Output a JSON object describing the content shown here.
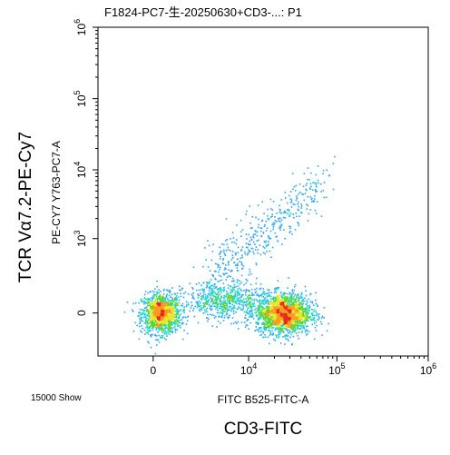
{
  "chart_data": {
    "type": "scatter",
    "title": "F1824-PC7-生-20250630+CD3-...: P1",
    "xlabel": "FITC B525-FITC-A",
    "ylabel": "PE-CY7 Y763-PC7-A",
    "outer_xlabel": "CD3-FITC",
    "outer_ylabel": "TCR Vα7.2-PE-Cy7",
    "footer": "15000 Show",
    "x_ticks": [
      {
        "value": 0,
        "base": "0",
        "exp": ""
      },
      {
        "value": 10000,
        "base": "10",
        "exp": "4"
      },
      {
        "value": 100000,
        "base": "10",
        "exp": "5"
      },
      {
        "value": 1000000,
        "base": "10",
        "exp": "6"
      }
    ],
    "y_ticks": [
      {
        "value": 0,
        "base": "0",
        "exp": ""
      },
      {
        "value": 1000,
        "base": "10",
        "exp": "3"
      },
      {
        "value": 10000,
        "base": "10",
        "exp": "4"
      },
      {
        "value": 100000,
        "base": "10",
        "exp": "5"
      },
      {
        "value": 1000000,
        "base": "10",
        "exp": "6"
      }
    ],
    "scale": "biexponential",
    "xlim": [
      -3000,
      1000000
    ],
    "ylim": [
      -300,
      1000000
    ],
    "event_count": 15000,
    "populations": [
      {
        "name": "",
        "x_center": 200,
        "x_spread": 600,
        "y_center": 0,
        "y_spread": 150,
        "fraction": 0.3
      },
      {
        "name": "",
        "x_center": 25000,
        "x_spread": 20000,
        "y_center": 0,
        "y_spread": 150,
        "fraction": 0.45
      },
      {
        "name": "",
        "x_center": 5000,
        "x_spread": 8000,
        "y_center": 50,
        "y_spread": 200,
        "fraction": 0.15
      },
      {
        "name": "",
        "x_center": 28000,
        "x_spread": 18000,
        "y_center": 2500,
        "y_spread": 2500,
        "fraction": 0.1
      }
    ],
    "colormap": [
      "#1f1fd6",
      "#2aa5ff",
      "#1fd6c9",
      "#5ad62a",
      "#e6e62a",
      "#ff9a1f",
      "#e62a1f"
    ]
  }
}
